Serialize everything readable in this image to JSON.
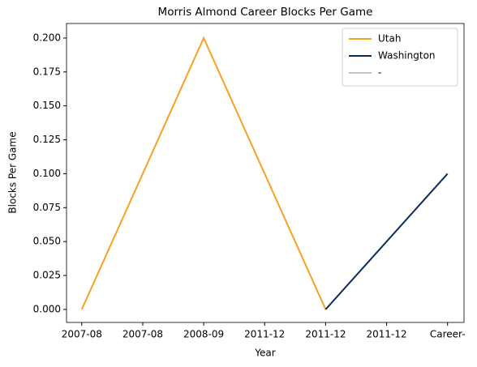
{
  "chart_data": {
    "type": "line",
    "title": "Morris Almond Career Blocks Per Game",
    "xlabel": "Year",
    "ylabel": "Blocks Per Game",
    "xlim": [
      -0.25,
      6.27
    ],
    "ylim": [
      -0.0096,
      0.2107
    ],
    "xticks": [
      {
        "value": 0,
        "label": "2007-08"
      },
      {
        "value": 1,
        "label": "2007-08"
      },
      {
        "value": 2,
        "label": "2008-09"
      },
      {
        "value": 3,
        "label": "2011-12"
      },
      {
        "value": 4,
        "label": "2011-12"
      },
      {
        "value": 5,
        "label": "2011-12"
      },
      {
        "value": 6,
        "label": "Career-"
      }
    ],
    "yticks": [
      {
        "value": 0,
        "label": "0.000"
      },
      {
        "value": 0.025,
        "label": "0.025"
      },
      {
        "value": 0.05,
        "label": "0.050"
      },
      {
        "value": 0.075,
        "label": "0.075"
      },
      {
        "value": 0.1,
        "label": "0.100"
      },
      {
        "value": 0.125,
        "label": "0.125"
      },
      {
        "value": 0.15,
        "label": "0.150"
      },
      {
        "value": 0.175,
        "label": "0.175"
      },
      {
        "value": 0.2,
        "label": "0.200"
      }
    ],
    "legend": "upper right",
    "series": [
      {
        "name": "Utah",
        "color": "#f4a124",
        "x": [
          0,
          2,
          4
        ],
        "values": [
          0,
          0.2,
          0
        ]
      },
      {
        "name": "Washington",
        "color": "#0c2c56",
        "x": [
          4,
          6
        ],
        "values": [
          0,
          0.1
        ]
      },
      {
        "name": "-",
        "color": "#c4c4c4",
        "x": [],
        "values": []
      }
    ]
  }
}
